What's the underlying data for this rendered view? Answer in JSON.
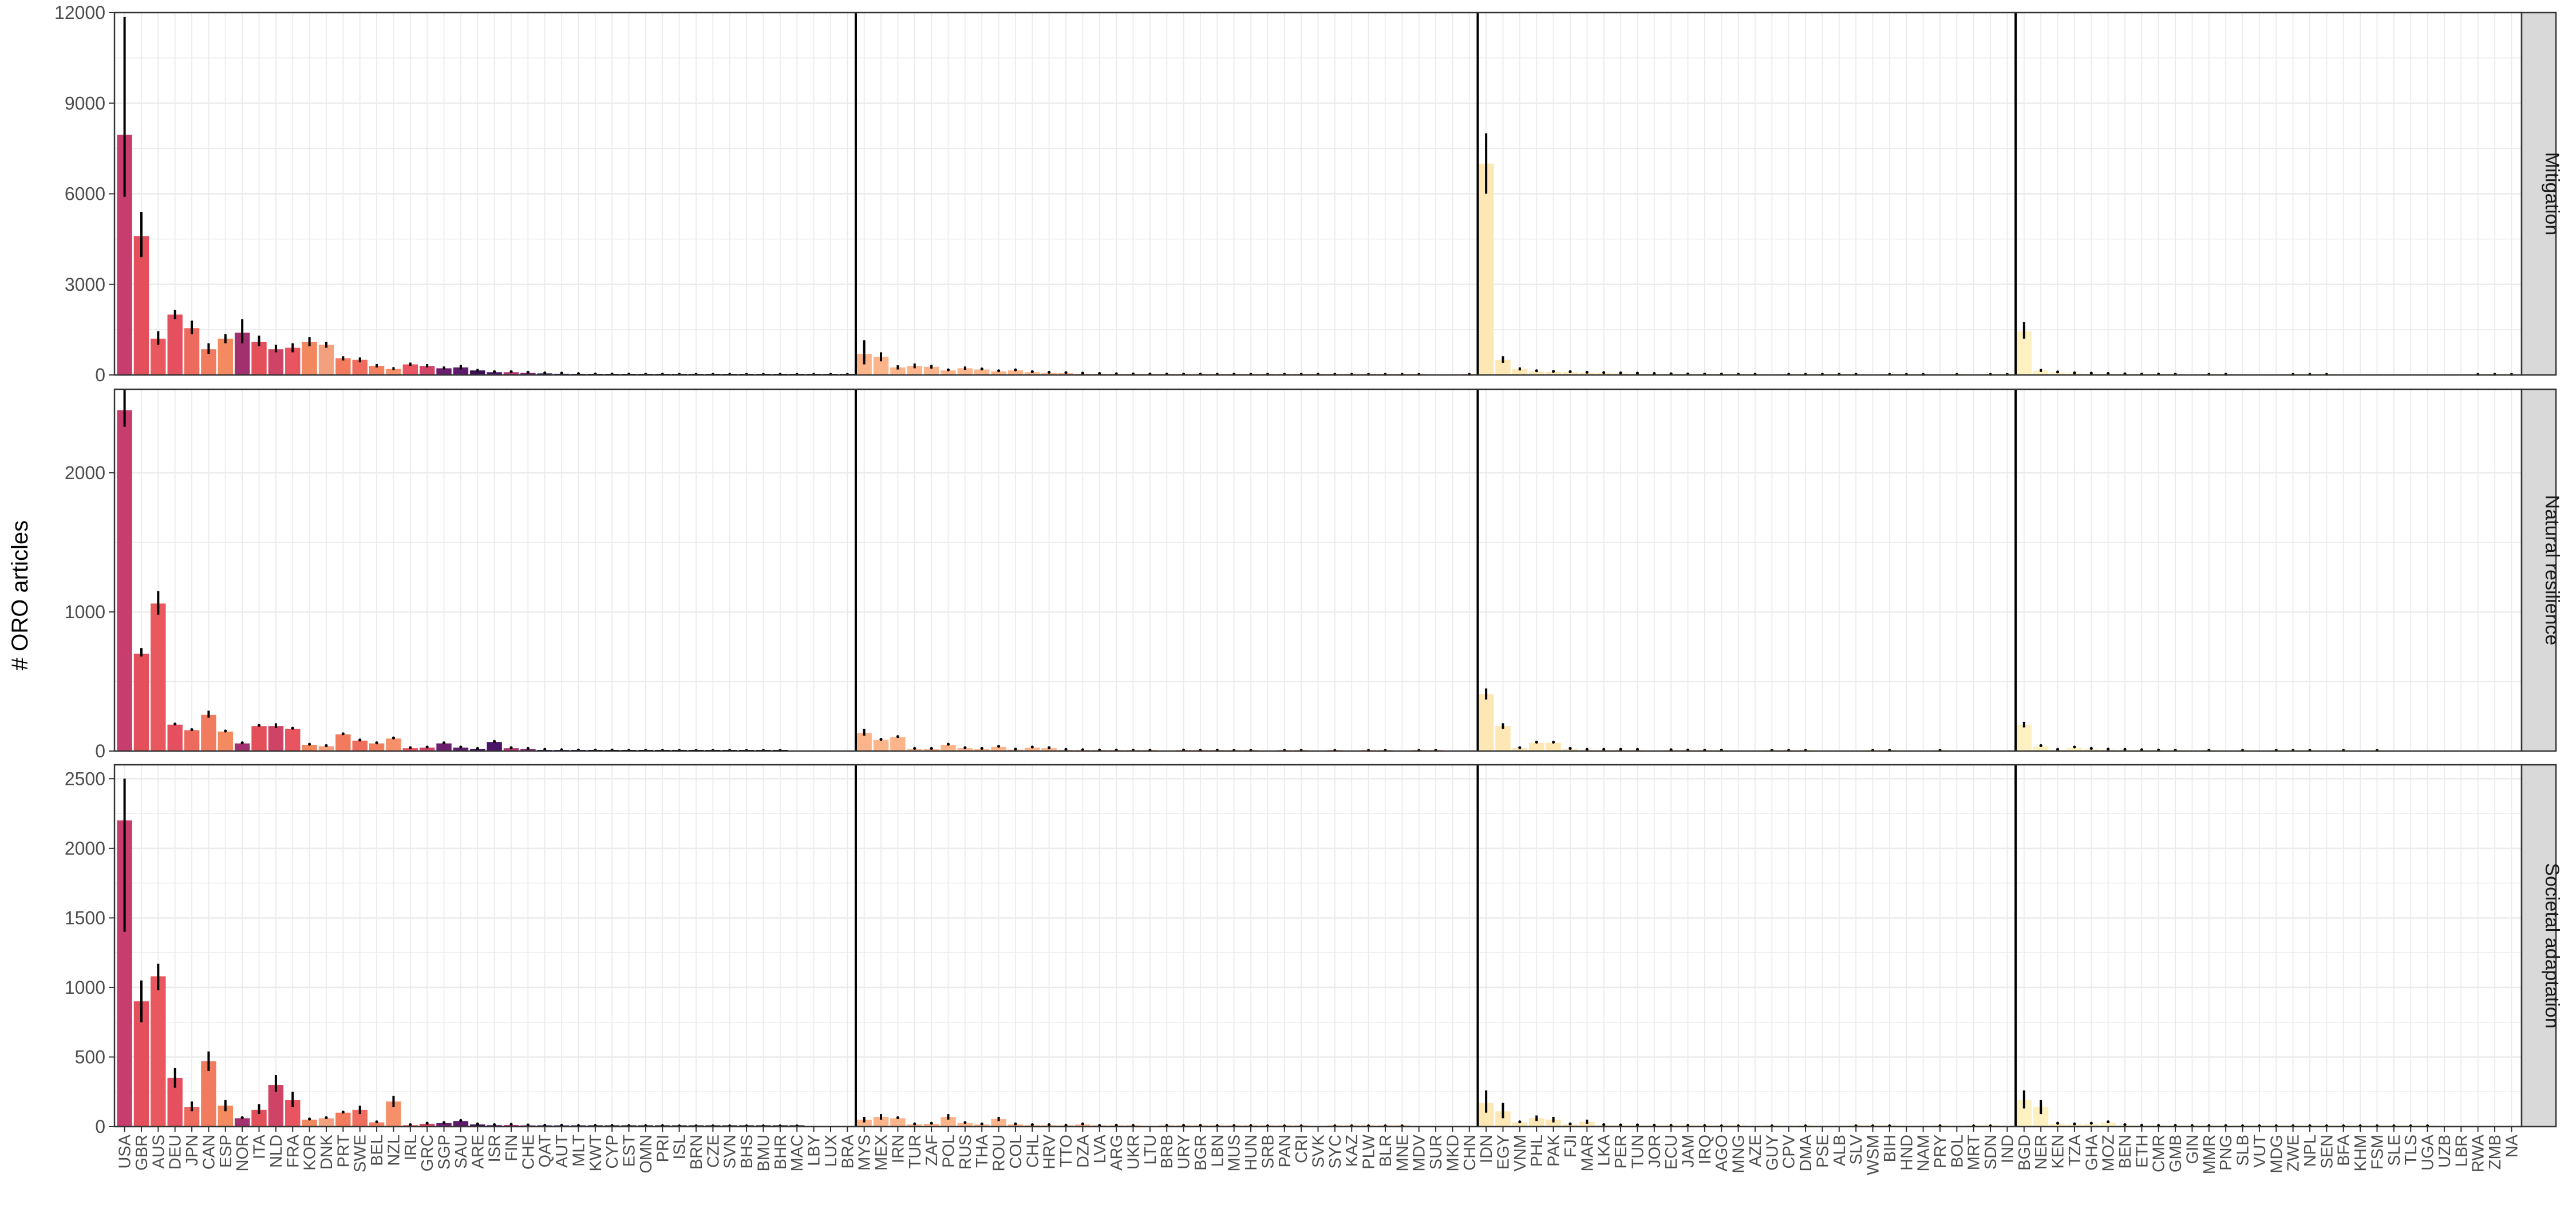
{
  "chart_data": {
    "type": "bar",
    "ylabel": "# ORO articles",
    "grid": true,
    "legend": "none",
    "countries": [
      "USA",
      "GBR",
      "AUS",
      "DEU",
      "JPN",
      "CAN",
      "ESP",
      "NOR",
      "ITA",
      "NLD",
      "FRA",
      "KOR",
      "DNK",
      "PRT",
      "SWE",
      "BEL",
      "NZL",
      "IRL",
      "GRC",
      "SGP",
      "SAU",
      "ARE",
      "ISR",
      "FIN",
      "CHE",
      "QAT",
      "AUT",
      "MLT",
      "KWT",
      "CYP",
      "EST",
      "OMN",
      "PRI",
      "ISL",
      "BRN",
      "CZE",
      "SVN",
      "BHS",
      "BMU",
      "BHR",
      "MAC",
      "LBY",
      "LUX",
      "BRA",
      "MYS",
      "MEX",
      "IRN",
      "TUR",
      "ZAF",
      "POL",
      "RUS",
      "THA",
      "ROU",
      "COL",
      "CHL",
      "HRV",
      "TTO",
      "DZA",
      "LVA",
      "ARG",
      "UKR",
      "LTU",
      "BRB",
      "URY",
      "BGR",
      "LBN",
      "MUS",
      "HUN",
      "SRB",
      "PAN",
      "CRI",
      "SVK",
      "SYC",
      "KAZ",
      "PLW",
      "BLR",
      "MNE",
      "MDV",
      "SUR",
      "MKD",
      "CHN",
      "IDN",
      "EGY",
      "VNM",
      "PHL",
      "PAK",
      "FJI",
      "MAR",
      "LKA",
      "PER",
      "TUN",
      "JOR",
      "ECU",
      "JAM",
      "IRQ",
      "AGO",
      "MNG",
      "AZE",
      "GUY",
      "CPV",
      "DMA",
      "PSE",
      "ALB",
      "SLV",
      "WSM",
      "BIH",
      "HND",
      "NAM",
      "PRY",
      "BOL",
      "MRT",
      "SDN",
      "IND",
      "BGD",
      "NER",
      "KEN",
      "TZA",
      "GHA",
      "MOZ",
      "BEN",
      "ETH",
      "CMR",
      "GMB",
      "GIN",
      "MMR",
      "PNG",
      "SLB",
      "VUT",
      "MDG",
      "ZWE",
      "NPL",
      "SEN",
      "BFA",
      "KHM",
      "FSM",
      "SLE",
      "TLS",
      "UGA",
      "UZB",
      "LBR",
      "RWA",
      "ZMB",
      "NA"
    ],
    "groups": [
      {
        "first": "USA",
        "last": "BRA",
        "colors": [
          "#c63d6e",
          "#e34f5a",
          "#e8585e",
          "#e4505f",
          "#ec6a5e",
          "#f07b5e",
          "#f48a5f",
          "#a3306e",
          "#e4505a",
          "#cf4466",
          "#e8545f",
          "#f1885f",
          "#f3a07f",
          "#f27a5d",
          "#f06c5c",
          "#f08060",
          "#f6906a",
          "#e95563",
          "#d24568",
          "#6c1e6e",
          "#5e1a6c",
          "#3b0f56",
          "#4a1468",
          "#b53572",
          "#7e2473",
          "#20105a",
          "#3a0f6e",
          "#13103f",
          "#000004",
          "#000004",
          "#000004",
          "#000004",
          "#000004",
          "#000004",
          "#000004",
          "#000004",
          "#000004",
          "#000004",
          "#000004",
          "#000004",
          "#000004",
          "#000004",
          "#000004",
          "#000004"
        ]
      },
      {
        "first": "MYS",
        "last": "CHN",
        "color": "#fcb48b"
      },
      {
        "first": "IDN",
        "last": "IND",
        "color": "#fde8b5"
      },
      {
        "first": "BGD",
        "last": "NA",
        "color": "#fdf1c2"
      }
    ],
    "panels": [
      {
        "name": "Mitigation",
        "ylim": [
          0,
          12000
        ],
        "yticks": [
          0,
          3000,
          6000,
          9000,
          12000
        ],
        "values": {
          "USA": 7950,
          "GBR": 4600,
          "AUS": 1200,
          "DEU": 2000,
          "JPN": 1550,
          "CAN": 850,
          "ESP": 1200,
          "NOR": 1400,
          "ITA": 1100,
          "NLD": 850,
          "FRA": 900,
          "KOR": 1100,
          "DNK": 1000,
          "PRT": 550,
          "SWE": 500,
          "BEL": 300,
          "NZL": 200,
          "IRL": 350,
          "GRC": 300,
          "SGP": 220,
          "SAU": 250,
          "ARE": 150,
          "ISR": 90,
          "FIN": 90,
          "CHE": 70,
          "QAT": 50,
          "AUT": 40,
          "MLT": 25,
          "KWT": 15,
          "CYP": 10,
          "EST": 8,
          "OMN": 6,
          "PRI": 5,
          "ISL": 4,
          "BRN": 3,
          "CZE": 3,
          "SVN": 2,
          "BHS": 2,
          "BMU": 1,
          "BHR": 1,
          "MAC": 1,
          "LBY": 1,
          "LUX": 1,
          "BRA": 1,
          "MYS": 700,
          "MEX": 600,
          "IRN": 250,
          "TUR": 300,
          "ZAF": 270,
          "POL": 150,
          "RUS": 220,
          "THA": 180,
          "ROU": 120,
          "COL": 150,
          "CHL": 90,
          "HRV": 70,
          "TTO": 60,
          "DZA": 40,
          "LVA": 30,
          "ARG": 20,
          "UKR": 15,
          "LTU": 12,
          "BRB": 10,
          "URY": 8,
          "BGR": 7,
          "LBN": 6,
          "MUS": 5,
          "HUN": 4,
          "SRB": 3,
          "PAN": 3,
          "CRI": 2,
          "SVK": 2,
          "SYC": 2,
          "KAZ": 1,
          "PLW": 1,
          "BLR": 1,
          "MNE": 1,
          "MDV": 1,
          "CHN": 1,
          "IDN": 7000,
          "EGY": 500,
          "VNM": 200,
          "PHL": 120,
          "PAK": 100,
          "FJI": 90,
          "MAR": 70,
          "LKA": 60,
          "PER": 50,
          "TUN": 40,
          "JOR": 30,
          "ECU": 20,
          "JAM": 15,
          "IRQ": 10,
          "AGO": 8,
          "MNG": 6,
          "AZE": 5,
          "CPV": 3,
          "DMA": 3,
          "PSE": 2,
          "ALB": 2,
          "SLV": 2,
          "BIH": 1,
          "HND": 1,
          "NAM": 1,
          "BOL": 1,
          "SDN": 1,
          "IND": 1,
          "BGD": 1450,
          "NER": 150,
          "KEN": 80,
          "TZA": 50,
          "GHA": 40,
          "MOZ": 30,
          "BEN": 20,
          "ETH": 10,
          "CMR": 8,
          "GMB": 6,
          "MMR": 3,
          "PNG": 2,
          "ZWE": 1,
          "NPL": 1,
          "SEN": 1,
          "RWA": 1,
          "ZMB": 1,
          "NA": 1
        },
        "error_bars": {
          "USA": [
            5900,
            11850
          ],
          "GBR": [
            3900,
            5400
          ],
          "AUS": [
            1000,
            1450
          ],
          "DEU": [
            1850,
            2150
          ],
          "JPN": [
            1350,
            1800
          ],
          "CAN": [
            700,
            1050
          ],
          "ESP": [
            1050,
            1350
          ],
          "NOR": [
            1050,
            1850
          ],
          "ITA": [
            950,
            1300
          ],
          "NLD": [
            750,
            1000
          ],
          "FRA": [
            750,
            1050
          ],
          "KOR": [
            950,
            1250
          ],
          "DNK": [
            900,
            1100
          ],
          "PRT": [
            480,
            620
          ],
          "SWE": [
            420,
            580
          ],
          "BEL": [
            250,
            360
          ],
          "NZL": [
            160,
            260
          ],
          "IRL": [
            300,
            410
          ],
          "GRC": [
            250,
            360
          ],
          "SGP": [
            180,
            280
          ],
          "SAU": [
            180,
            330
          ],
          "ARE": [
            110,
            200
          ],
          "MYS": [
            350,
            1150
          ],
          "MEX": [
            450,
            750
          ],
          "IRN": [
            180,
            320
          ],
          "TUR": [
            220,
            380
          ],
          "ZAF": [
            210,
            330
          ],
          "RUS": [
            170,
            280
          ],
          "IDN": [
            6000,
            8000
          ],
          "EGY": [
            400,
            620
          ],
          "VNM": [
            150,
            250
          ],
          "BGD": [
            1200,
            1750
          ],
          "NER": [
            100,
            200
          ]
        }
      },
      {
        "name": "Natural resilience",
        "ylim": [
          0,
          2600
        ],
        "yticks": [
          0,
          1000,
          2000
        ],
        "values": {
          "USA": 2450,
          "GBR": 700,
          "AUS": 1060,
          "DEU": 190,
          "JPN": 150,
          "CAN": 260,
          "ESP": 140,
          "NOR": 55,
          "ITA": 180,
          "NLD": 180,
          "FRA": 160,
          "KOR": 45,
          "DNK": 35,
          "PRT": 120,
          "SWE": 75,
          "BEL": 55,
          "NZL": 90,
          "IRL": 20,
          "GRC": 25,
          "SGP": 55,
          "SAU": 25,
          "ARE": 15,
          "ISR": 65,
          "FIN": 20,
          "CHE": 15,
          "QAT": 8,
          "AUT": 5,
          "MLT": 3,
          "KWT": 3,
          "CYP": 3,
          "EST": 2,
          "OMN": 2,
          "PRI": 1,
          "ISL": 1,
          "BRN": 1,
          "CZE": 1,
          "SVN": 1,
          "BHS": 1,
          "BMU": 1,
          "BHR": 1,
          "MYS": 130,
          "MEX": 80,
          "IRN": 100,
          "TUR": 15,
          "ZAF": 15,
          "POL": 45,
          "RUS": 20,
          "THA": 15,
          "ROU": 30,
          "COL": 10,
          "CHL": 25,
          "HRV": 20,
          "TTO": 8,
          "DZA": 5,
          "LVA": 3,
          "ARG": 3,
          "UKR": 2,
          "LTU": 2,
          "URY": 3,
          "BGR": 2,
          "LBN": 2,
          "MUS": 1,
          "HUN": 1,
          "PAN": 1,
          "CRI": 1,
          "SYC": 1,
          "PLW": 1,
          "BLR": 1,
          "MDV": 1,
          "SUR": 1,
          "IDN": 410,
          "EGY": 180,
          "VNM": 20,
          "PHL": 60,
          "PAK": 60,
          "FJI": 15,
          "MAR": 8,
          "LKA": 8,
          "PER": 8,
          "TUN": 8,
          "ECU": 5,
          "JAM": 3,
          "IRQ": 2,
          "AGO": 2,
          "GUY": 1,
          "CPV": 1,
          "DMA": 1,
          "WSM": 1,
          "BIH": 1,
          "PRY": 1,
          "BGD": 190,
          "NER": 35,
          "KEN": 8,
          "TZA": 25,
          "GHA": 15,
          "MOZ": 10,
          "BEN": 8,
          "ETH": 5,
          "CMR": 3,
          "GMB": 2,
          "MMR": 2,
          "SLB": 1,
          "MDG": 1,
          "ZWE": 1,
          "NPL": 1,
          "BFA": 1,
          "FSM": 1
        },
        "error_bars": {
          "USA": [
            2330,
            2600
          ],
          "GBR": [
            680,
            740
          ],
          "AUS": [
            980,
            1150
          ],
          "CAN": [
            240,
            290
          ],
          "NLD": [
            165,
            200
          ],
          "MYS": [
            110,
            160
          ],
          "IDN": [
            370,
            450
          ],
          "EGY": [
            160,
            200
          ],
          "BGD": [
            170,
            210
          ]
        }
      },
      {
        "name": "Societal adaptation",
        "ylim": [
          0,
          2600
        ],
        "yticks": [
          0,
          500,
          1000,
          1500,
          2000,
          2500
        ],
        "values": {
          "USA": 2200,
          "GBR": 900,
          "AUS": 1080,
          "DEU": 350,
          "JPN": 140,
          "CAN": 470,
          "ESP": 150,
          "NOR": 60,
          "ITA": 120,
          "NLD": 300,
          "FRA": 190,
          "KOR": 50,
          "DNK": 60,
          "PRT": 100,
          "SWE": 120,
          "BEL": 30,
          "NZL": 180,
          "IRL": 10,
          "GRC": 20,
          "SGP": 25,
          "SAU": 40,
          "ARE": 15,
          "ISR": 10,
          "FIN": 12,
          "CHE": 8,
          "QAT": 5,
          "AUT": 5,
          "MLT": 3,
          "KWT": 3,
          "CYP": 3,
          "EST": 2,
          "OMN": 2,
          "PRI": 2,
          "ISL": 1,
          "BRN": 1,
          "CZE": 1,
          "SVN": 1,
          "BHS": 1,
          "BMU": 1,
          "BHR": 1,
          "MAC": 1,
          "MYS": 50,
          "MEX": 70,
          "IRN": 60,
          "TUR": 15,
          "ZAF": 20,
          "POL": 70,
          "RUS": 25,
          "THA": 15,
          "ROU": 55,
          "COL": 15,
          "CHL": 10,
          "HRV": 10,
          "TTO": 5,
          "DZA": 15,
          "LVA": 3,
          "ARG": 5,
          "UKR": 3,
          "BRB": 3,
          "URY": 4,
          "BGR": 3,
          "LBN": 2,
          "MUS": 2,
          "HUN": 2,
          "SRB": 1,
          "PAN": 1,
          "CRI": 1,
          "SYC": 1,
          "KAZ": 1,
          "PLW": 1,
          "BLR": 1,
          "MNE": 1,
          "IDN": 170,
          "EGY": 110,
          "VNM": 30,
          "PHL": 60,
          "PAK": 50,
          "FJI": 15,
          "MAR": 35,
          "LKA": 10,
          "PER": 8,
          "TUN": 8,
          "JOR": 5,
          "ECU": 4,
          "JAM": 3,
          "IRQ": 2,
          "AGO": 1,
          "MNG": 1,
          "GUY": 1,
          "DMA": 1,
          "SLV": 1,
          "WSM": 1,
          "BIH": 1,
          "PRY": 1,
          "MRT": 1,
          "SDN": 1,
          "BGD": 190,
          "NER": 140,
          "KEN": 20,
          "TZA": 15,
          "GHA": 20,
          "MOZ": 30,
          "BEN": 10,
          "ETH": 5,
          "CMR": 3,
          "GMB": 3,
          "GIN": 2,
          "MMR": 2,
          "PNG": 2,
          "SLB": 1,
          "VUT": 1,
          "MDG": 1,
          "ZWE": 1,
          "NPL": 1,
          "SEN": 1,
          "BFA": 1,
          "KHM": 1,
          "FSM": 1,
          "SLE": 1,
          "TLS": 1,
          "UGA": 1
        },
        "error_bars": {
          "USA": [
            1400,
            2500
          ],
          "GBR": [
            750,
            1050
          ],
          "AUS": [
            980,
            1170
          ],
          "DEU": [
            280,
            420
          ],
          "JPN": [
            110,
            180
          ],
          "CAN": [
            400,
            540
          ],
          "ESP": [
            110,
            190
          ],
          "ITA": [
            90,
            160
          ],
          "NLD": [
            250,
            370
          ],
          "FRA": [
            140,
            250
          ],
          "SWE": [
            90,
            150
          ],
          "NZL": [
            140,
            220
          ],
          "MYS": [
            30,
            70
          ],
          "MEX": [
            50,
            90
          ],
          "POL": [
            50,
            90
          ],
          "ROU": [
            40,
            70
          ],
          "IDN": [
            100,
            260
          ],
          "EGY": [
            60,
            170
          ],
          "PHL": [
            40,
            80
          ],
          "PAK": [
            30,
            70
          ],
          "MAR": [
            20,
            50
          ],
          "BGD": [
            130,
            260
          ],
          "NER": [
            90,
            190
          ]
        }
      }
    ]
  },
  "colors": {
    "grid": "#ebebeb",
    "panel_border": "#333333",
    "strip_fill": "#d9d9d9",
    "group_divider": "#000000",
    "axis_text": "#4d4d4d",
    "title_text": "#000000"
  }
}
